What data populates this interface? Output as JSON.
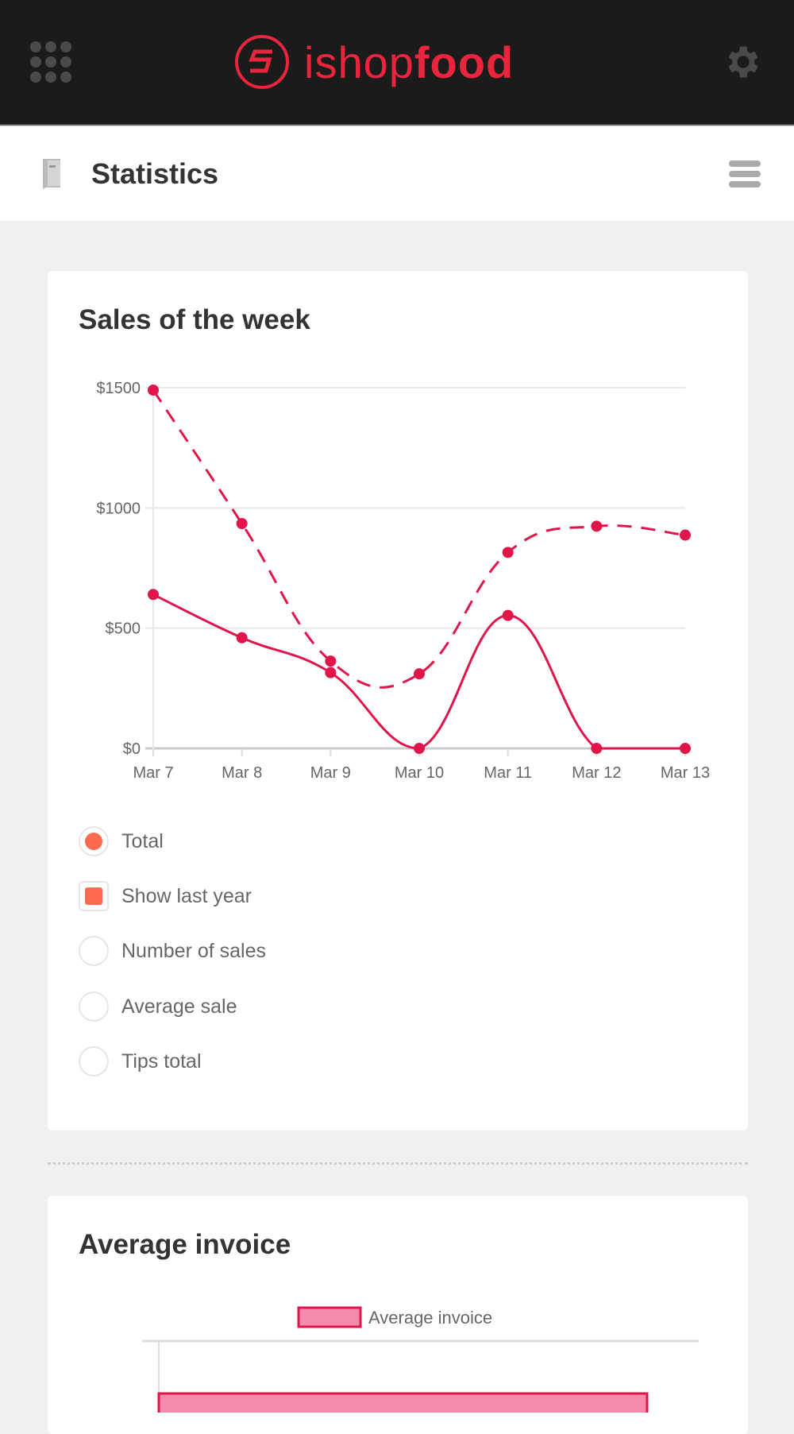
{
  "header": {
    "logo_light": "ishop",
    "logo_bold": "food",
    "accent": "#e8253c"
  },
  "titlebar": {
    "title": "Statistics"
  },
  "sales_card": {
    "title": "Sales of the week",
    "options": [
      {
        "label": "Total",
        "type": "radio",
        "checked": true
      },
      {
        "label": "Show last year",
        "type": "checkbox",
        "checked": true
      },
      {
        "label": "Number of sales",
        "type": "radio",
        "checked": false
      },
      {
        "label": "Average sale",
        "type": "radio",
        "checked": false
      },
      {
        "label": "Tips total",
        "type": "radio",
        "checked": false
      }
    ]
  },
  "invoice_card": {
    "title": "Average invoice"
  },
  "chart_data": [
    {
      "type": "line",
      "title": "Sales of the week",
      "categories": [
        "Mar 7",
        "Mar 8",
        "Mar 9",
        "Mar 10",
        "Mar 11",
        "Mar 12",
        "Mar 13"
      ],
      "yticks": [
        "$0",
        "$500",
        "$1000",
        "$1500"
      ],
      "ylim": [
        0,
        1500
      ],
      "grid": true,
      "series": [
        {
          "name": "Total",
          "style": "solid",
          "color": "#e0164a",
          "values": [
            640,
            460,
            315,
            0,
            553,
            0,
            0
          ]
        },
        {
          "name": "Last year",
          "style": "dashed",
          "color": "#e0164a",
          "values": [
            1490,
            935,
            363,
            310,
            815,
            924,
            887
          ]
        }
      ]
    },
    {
      "type": "bar",
      "title": "Average invoice",
      "legend": "Average invoice",
      "legend_position": "top",
      "fill": "#f28caa",
      "border": "#e0164a"
    }
  ]
}
